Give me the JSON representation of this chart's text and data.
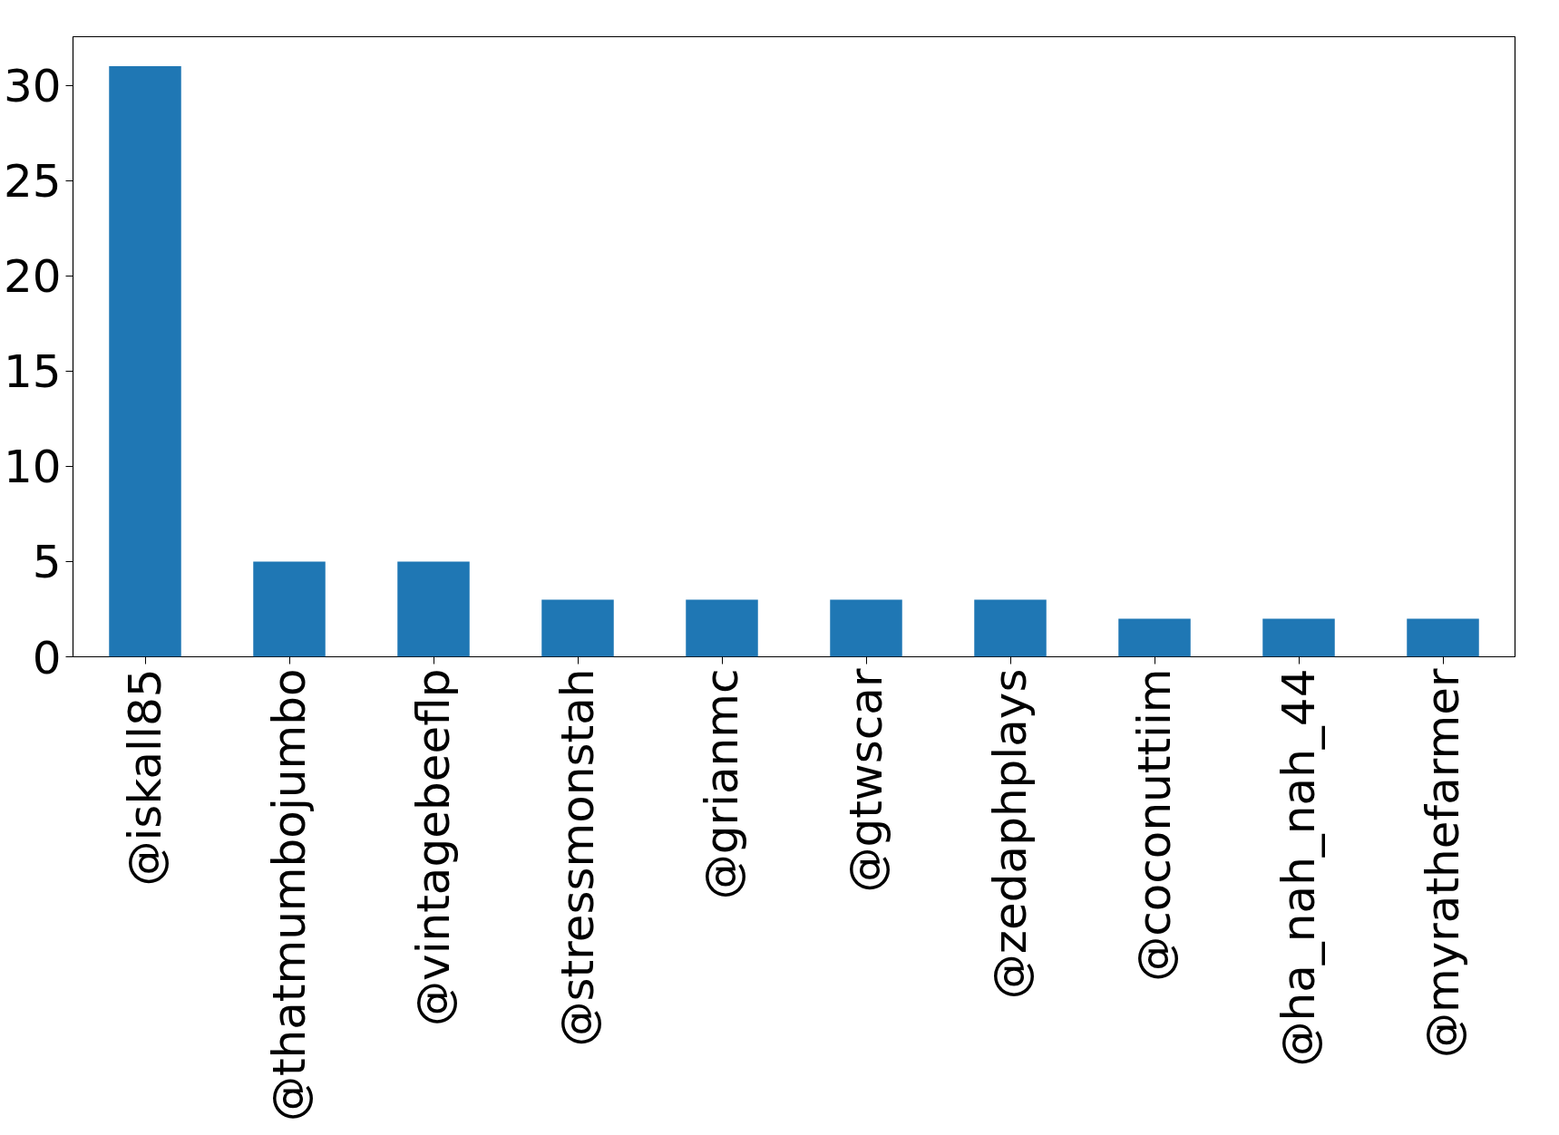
{
  "chart_data": {
    "type": "bar",
    "categories": [
      "@iskall85",
      "@thatmumbojumbo",
      "@vintagebeeflp",
      "@stressmonstah",
      "@grianmc",
      "@gtwscar",
      "@zedaphplays",
      "@coconuttiim",
      "@ha_nah_nah_44",
      "@myrathefarmer"
    ],
    "values": [
      31,
      5,
      5,
      3,
      3,
      3,
      3,
      2,
      2,
      2
    ],
    "color": "#1f77b4",
    "ylim": [
      0,
      32.55
    ],
    "yticks": [
      0,
      5,
      10,
      15,
      20,
      25,
      30
    ],
    "grid": false
  }
}
